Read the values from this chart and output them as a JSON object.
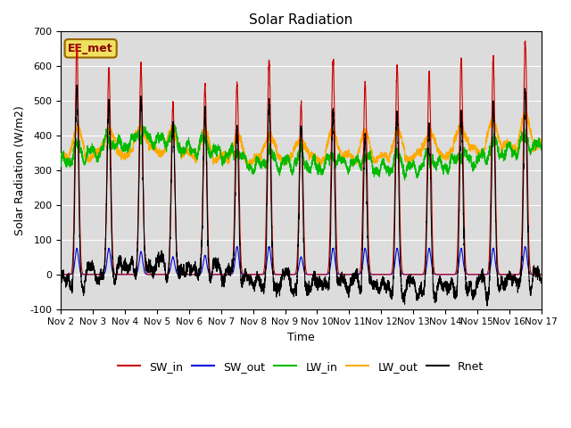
{
  "title": "Solar Radiation",
  "xlabel": "Time",
  "ylabel": "Solar Radiation (W/m2)",
  "ylim": [
    -100,
    700
  ],
  "bg_color": "#dcdcdc",
  "annotation": "EE_met",
  "legend": [
    "SW_in",
    "SW_out",
    "LW_in",
    "LW_out",
    "Rnet"
  ],
  "colors": {
    "SW_in": "#cc0000",
    "SW_out": "#0000dd",
    "LW_in": "#00bb00",
    "LW_out": "#ffaa00",
    "Rnet": "#000000"
  },
  "xtick_labels": [
    "Nov 2",
    "Nov 3",
    "Nov 4",
    "Nov 5",
    "Nov 6",
    "Nov 7",
    "Nov 8",
    "Nov 9",
    "Nov 10",
    "Nov 11",
    "Nov 12",
    "Nov 13",
    "Nov 14",
    "Nov 15",
    "Nov 16",
    "Nov 17"
  ],
  "num_days": 15,
  "samples_per_day": 288
}
